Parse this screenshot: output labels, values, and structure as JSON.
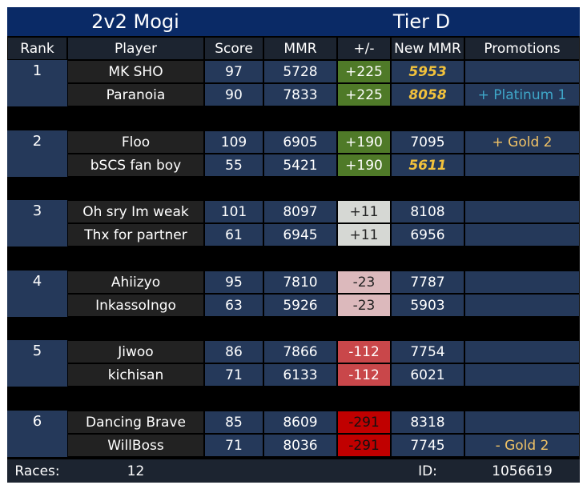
{
  "title_left": "2v2 Mogi",
  "title_right": "Tier D",
  "columns": [
    "Rank",
    "Player",
    "Score",
    "MMR",
    "+/-",
    "New MMR",
    "Promotions"
  ],
  "colors": {
    "title_bg": "#0a2a66",
    "header_bg": "#1c2430",
    "row_blue": "#25395a",
    "row_dark": "#222222",
    "gold_text": "#f2c23c",
    "promo_gold": "#f0c266",
    "promo_platinum": "#3fa7c9",
    "change_green": "#4f7a28",
    "change_light": "#d6d8d4",
    "change_pink": "#dcb9bc",
    "change_red": "#c9474a",
    "change_darkred": "#c00000"
  },
  "teams": [
    {
      "rank": "1",
      "players": [
        {
          "name": "MK SHO",
          "score": "97",
          "mmr": "5728",
          "change": "+225",
          "new_mmr": "5953",
          "new_mmr_highlight": true,
          "promotion": ""
        },
        {
          "name": "Paranoia",
          "score": "90",
          "mmr": "7833",
          "change": "+225",
          "new_mmr": "8058",
          "new_mmr_highlight": true,
          "promotion": "+ Platinum 1"
        }
      ]
    },
    {
      "rank": "2",
      "players": [
        {
          "name": "Floo",
          "score": "109",
          "mmr": "6905",
          "change": "+190",
          "new_mmr": "7095",
          "new_mmr_highlight": false,
          "promotion": "+ Gold 2"
        },
        {
          "name": "bSCS fan boy",
          "score": "55",
          "mmr": "5421",
          "change": "+190",
          "new_mmr": "5611",
          "new_mmr_highlight": true,
          "promotion": ""
        }
      ]
    },
    {
      "rank": "3",
      "players": [
        {
          "name": "Oh sry Im weak",
          "score": "101",
          "mmr": "8097",
          "change": "+11",
          "new_mmr": "8108",
          "new_mmr_highlight": false,
          "promotion": ""
        },
        {
          "name": "Thx for partner",
          "score": "61",
          "mmr": "6945",
          "change": "+11",
          "new_mmr": "6956",
          "new_mmr_highlight": false,
          "promotion": ""
        }
      ]
    },
    {
      "rank": "4",
      "players": [
        {
          "name": "Ahiizyo",
          "score": "95",
          "mmr": "7810",
          "change": "-23",
          "new_mmr": "7787",
          "new_mmr_highlight": false,
          "promotion": ""
        },
        {
          "name": "InkassoIngo",
          "score": "63",
          "mmr": "5926",
          "change": "-23",
          "new_mmr": "5903",
          "new_mmr_highlight": false,
          "promotion": ""
        }
      ]
    },
    {
      "rank": "5",
      "players": [
        {
          "name": "Jiwoo",
          "score": "86",
          "mmr": "7866",
          "change": "-112",
          "new_mmr": "7754",
          "new_mmr_highlight": false,
          "promotion": ""
        },
        {
          "name": "kichisan",
          "score": "71",
          "mmr": "6133",
          "change": "-112",
          "new_mmr": "6021",
          "new_mmr_highlight": false,
          "promotion": ""
        }
      ]
    },
    {
      "rank": "6",
      "players": [
        {
          "name": "Dancing Brave",
          "score": "85",
          "mmr": "8609",
          "change": "-291",
          "new_mmr": "8318",
          "new_mmr_highlight": false,
          "promotion": ""
        },
        {
          "name": "WillBoss",
          "score": "71",
          "mmr": "8036",
          "change": "-291",
          "new_mmr": "7745",
          "new_mmr_highlight": false,
          "promotion": "- Gold 2"
        }
      ]
    }
  ],
  "footer": {
    "races_label": "Races:",
    "races_value": "12",
    "id_label": "ID:",
    "id_value": "1056619"
  }
}
